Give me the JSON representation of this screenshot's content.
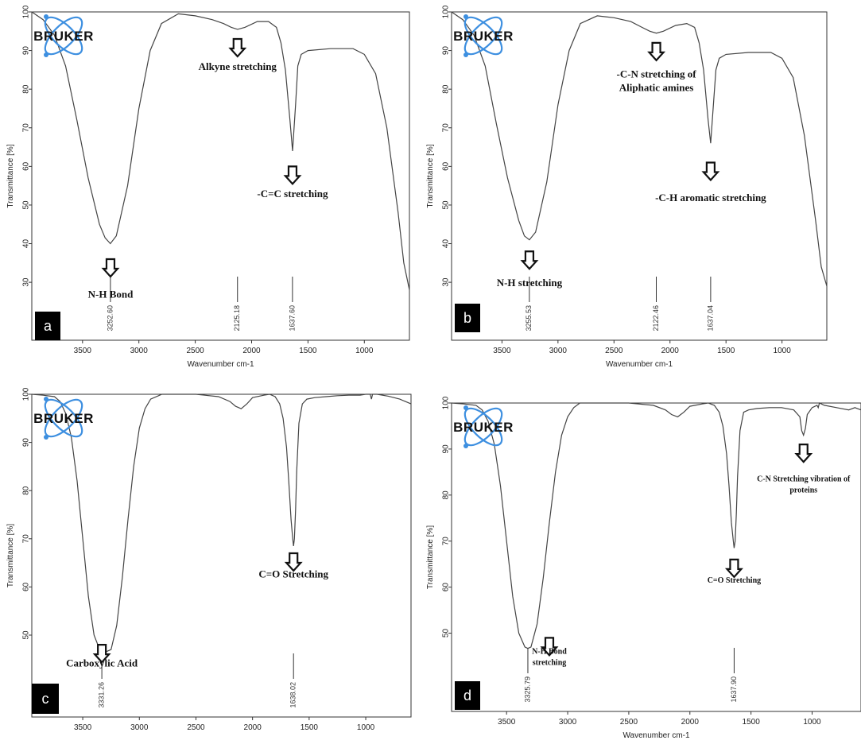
{
  "chart_data": [
    {
      "type": "line",
      "panel_label": "a",
      "logo": "BRUKER",
      "xlabel": "Wavenumber cm-1",
      "ylabel": "Transmittance [%]",
      "xlim": [
        3950,
        600
      ],
      "ylim": [
        15,
        100
      ],
      "x_ticks": [
        3500,
        3000,
        2500,
        2000,
        1500,
        1000
      ],
      "y_ticks": [
        30,
        40,
        50,
        60,
        70,
        80,
        90,
        100
      ],
      "series": [
        {
          "x": [
            3950,
            3850,
            3750,
            3650,
            3550,
            3450,
            3350,
            3300,
            3253,
            3200,
            3100,
            3000,
            2900,
            2800,
            2650,
            2500,
            2350,
            2250,
            2180,
            2125,
            2060,
            1950,
            1850,
            1780,
            1740,
            1700,
            1660,
            1637,
            1610,
            1590,
            1560,
            1500,
            1300,
            1100,
            1000,
            900,
            800,
            700,
            650,
            600
          ],
          "y": [
            100,
            98,
            94,
            86,
            72,
            57,
            45,
            41.5,
            40,
            42,
            55,
            75,
            90,
            97,
            99.5,
            99,
            98,
            97,
            96,
            95.5,
            96,
            97.5,
            97.5,
            96,
            92,
            85,
            72,
            64,
            76,
            86,
            89,
            90,
            90.5,
            90.5,
            89,
            84,
            70,
            48,
            35,
            28
          ]
        }
      ],
      "peak_labels": [
        {
          "x": 3252.6,
          "text": "3252.60"
        },
        {
          "x": 2125.18,
          "text": "2125.18"
        },
        {
          "x": 1637.6,
          "text": "1637.60"
        }
      ],
      "annotations": [
        {
          "text": "Alkyne stretching",
          "x": 2125,
          "y": 85,
          "arrow_y": 93
        },
        {
          "text": "-C=C stretching",
          "x": 1637,
          "y": 52,
          "arrow_y": 60
        },
        {
          "text": "N-H Bond",
          "x": 3252,
          "y": 26,
          "arrow_y": 36
        }
      ]
    },
    {
      "type": "line",
      "panel_label": "b",
      "logo": "BRUKER",
      "xlabel": "Wavenumber cm-1",
      "ylabel": "Transmittance [%]",
      "xlim": [
        3950,
        600
      ],
      "ylim": [
        15,
        100
      ],
      "x_ticks": [
        3500,
        3000,
        2500,
        2000,
        1500,
        1000
      ],
      "y_ticks": [
        30,
        40,
        50,
        60,
        70,
        80,
        90,
        100
      ],
      "series": [
        {
          "x": [
            3950,
            3850,
            3750,
            3650,
            3550,
            3450,
            3350,
            3300,
            3255,
            3200,
            3100,
            3000,
            2900,
            2800,
            2650,
            2500,
            2350,
            2250,
            2180,
            2122,
            2060,
            1950,
            1850,
            1780,
            1740,
            1700,
            1660,
            1637,
            1610,
            1590,
            1560,
            1500,
            1300,
            1100,
            1000,
            900,
            800,
            700,
            650,
            600
          ],
          "y": [
            100,
            98,
            94,
            86,
            71,
            57,
            46,
            42,
            41,
            43,
            56,
            76,
            90,
            97,
            99,
            98.5,
            97.5,
            96,
            95,
            94.5,
            95,
            96.5,
            97,
            96,
            92,
            85,
            72,
            66,
            77,
            85,
            88,
            89,
            89.5,
            89.5,
            88,
            83,
            68,
            46,
            34,
            29
          ]
        }
      ],
      "peak_labels": [
        {
          "x": 3255.53,
          "text": "3255.53"
        },
        {
          "x": 2122.46,
          "text": "2122.46"
        },
        {
          "x": 1637.04,
          "text": "1637.04"
        }
      ],
      "annotations": [
        {
          "text": "-C-N stretching of",
          "text2": "Aliphatic amines",
          "x": 2122,
          "y": 83,
          "arrow_y": 92
        },
        {
          "text": "-C-H aromatic stretching",
          "x": 1637,
          "y": 51,
          "arrow_y": 61
        },
        {
          "text": "N-H stretching",
          "x": 3255,
          "y": 29,
          "arrow_y": 38
        }
      ]
    },
    {
      "type": "line",
      "panel_label": "c",
      "logo": "BRUKER",
      "xlabel": "",
      "ylabel": "Transmittance [%]",
      "xlim": [
        3950,
        600
      ],
      "ylim": [
        33,
        100
      ],
      "x_ticks": [
        3500,
        3000,
        2500,
        2000,
        1500,
        1000
      ],
      "y_ticks": [
        50,
        60,
        70,
        80,
        90,
        100
      ],
      "series": [
        {
          "x": [
            3950,
            3850,
            3750,
            3700,
            3650,
            3600,
            3550,
            3500,
            3450,
            3400,
            3350,
            3300,
            3250,
            3200,
            3150,
            3100,
            3050,
            3000,
            2950,
            2900,
            2800,
            2700,
            2500,
            2300,
            2200,
            2150,
            2100,
            2050,
            2000,
            1900,
            1850,
            1800,
            1760,
            1730,
            1700,
            1680,
            1660,
            1645,
            1638,
            1630,
            1620,
            1610,
            1590,
            1560,
            1520,
            1450,
            1350,
            1250,
            1150,
            1050,
            1000,
            960,
            950,
            940,
            900,
            800,
            700,
            650,
            600
          ],
          "y": [
            100,
            99.8,
            99.5,
            98.5,
            96,
            91,
            82,
            70,
            58,
            50,
            47,
            46.5,
            47,
            52,
            62,
            74,
            85,
            93,
            97,
            99,
            100,
            100,
            100,
            99.5,
            98.5,
            97.5,
            97,
            98,
            99.3,
            99.8,
            100,
            99.5,
            98,
            95,
            89,
            82,
            74,
            70,
            68.5,
            70,
            76,
            84,
            94,
            98,
            99,
            99.3,
            99.5,
            99.7,
            99.8,
            99.8,
            100,
            100,
            99,
            100,
            100,
            99.6,
            99,
            98.5,
            98
          ]
        }
      ],
      "peak_labels": [
        {
          "x": 3331.26,
          "text": "3331.26"
        },
        {
          "x": 1638.02,
          "text": "1638.02"
        }
      ],
      "annotations": [
        {
          "text": "C=O Stretching",
          "x": 1638,
          "y": 62,
          "arrow_y": 67
        },
        {
          "text": "Carboxylic Acid",
          "x": 3331,
          "y": 43.5,
          "arrow_y": 48
        }
      ]
    },
    {
      "type": "line",
      "panel_label": "d",
      "logo": "BRUKER",
      "xlabel": "Wavenumber cm-1",
      "ylabel": "Transmittance [%]",
      "xlim": [
        3950,
        600
      ],
      "ylim": [
        33,
        100
      ],
      "x_ticks": [
        3500,
        3000,
        2500,
        2000,
        1500,
        1000
      ],
      "y_ticks": [
        50,
        60,
        70,
        80,
        90,
        100
      ],
      "series": [
        {
          "x": [
            3950,
            3850,
            3750,
            3700,
            3650,
            3600,
            3550,
            3500,
            3450,
            3400,
            3350,
            3326,
            3300,
            3250,
            3200,
            3150,
            3100,
            3050,
            3000,
            2950,
            2900,
            2800,
            2700,
            2500,
            2300,
            2200,
            2150,
            2100,
            2050,
            2000,
            1900,
            1850,
            1800,
            1760,
            1730,
            1700,
            1680,
            1660,
            1645,
            1638,
            1630,
            1620,
            1610,
            1590,
            1560,
            1520,
            1450,
            1350,
            1250,
            1150,
            1100,
            1085,
            1070,
            1055,
            1040,
            1000,
            960,
            950,
            940,
            900,
            800,
            700,
            650,
            600
          ],
          "y": [
            100,
            99.8,
            99.5,
            98.5,
            96,
            91,
            82,
            70,
            58,
            50,
            47,
            46.7,
            47,
            52,
            62,
            74,
            85,
            93,
            97,
            99,
            100,
            100,
            100,
            100,
            99.5,
            98.5,
            97.5,
            97,
            98,
            99.3,
            99.8,
            100,
            99.5,
            98,
            95,
            89,
            82,
            74,
            70,
            68.5,
            70,
            76,
            84,
            94,
            98,
            98.5,
            98.8,
            99,
            99,
            98.5,
            97,
            94,
            93,
            94.5,
            97.5,
            99,
            99.5,
            99,
            100,
            99.5,
            99,
            98.5,
            99,
            98.5
          ]
        }
      ],
      "peak_labels": [
        {
          "x": 3325.79,
          "text": "3325.79"
        },
        {
          "x": 1637.9,
          "text": "1637.90"
        }
      ],
      "annotations": [
        {
          "text": "C-N Stretching vibration of",
          "text2": "proteins",
          "x": 1070,
          "y": 83,
          "arrow_y": 91
        },
        {
          "text": "C=O Stretching",
          "x": 1638,
          "y": 61,
          "arrow_y": 66
        },
        {
          "text": "N-H Bond",
          "text2": "stretching",
          "x": 3150,
          "y": 45.5,
          "arrow_y": 49
        }
      ]
    }
  ]
}
